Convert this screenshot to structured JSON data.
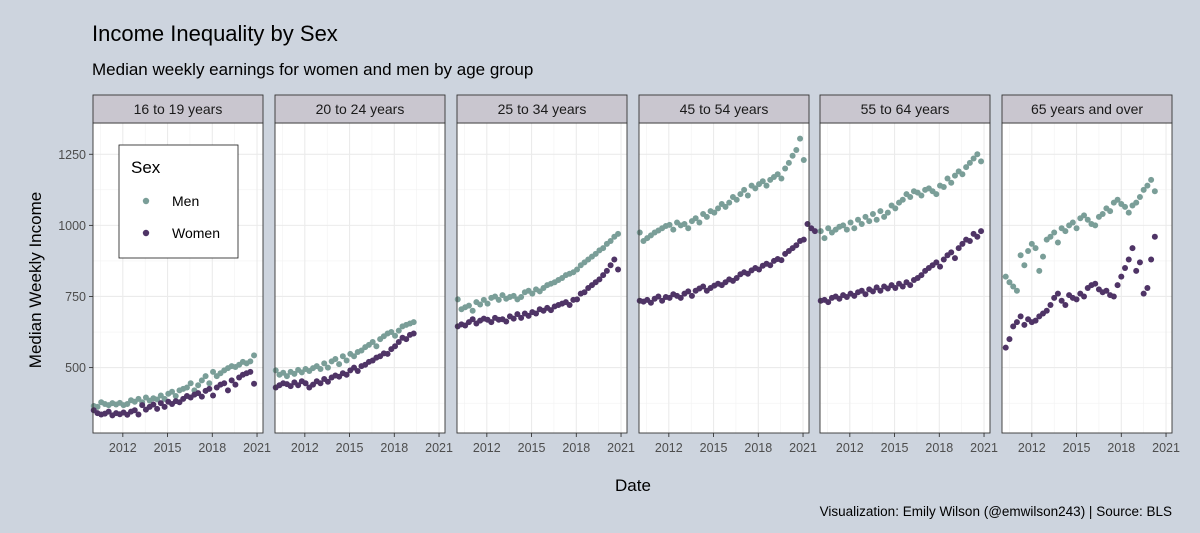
{
  "chart_data": {
    "type": "scatter",
    "title": "Income Inequality by Sex",
    "subtitle": "Median weekly earnings for women and men by age group",
    "xlabel": "Date",
    "ylabel": "Median Weekly Income",
    "caption": "Visualization: Emily Wilson (@emwilson243) | Source: BLS",
    "legend": {
      "title": "Sex",
      "position": "top-left, inside first panel",
      "items": [
        {
          "name": "Men",
          "color": "#7a9e98"
        },
        {
          "name": "Women",
          "color": "#4f3466"
        }
      ]
    },
    "xlim": [
      2010.0,
      2021.4
    ],
    "ylim": [
      270,
      1360
    ],
    "x_ticks": [
      2012,
      2015,
      2018,
      2021
    ],
    "y_ticks": [
      500,
      750,
      1000,
      1250
    ],
    "grid": true,
    "point_spacing_years": 0.25,
    "panels": [
      {
        "label": "16 to 19 years",
        "x_start": 2010.0,
        "men": [
          365,
          362,
          378,
          372,
          368,
          375,
          370,
          376,
          368,
          372,
          385,
          380,
          390,
          378,
          395,
          384,
          392,
          388,
          402,
          390,
          408,
          415,
          400,
          420,
          425,
          430,
          445,
          420,
          438,
          455,
          470,
          445,
          485,
          470,
          480,
          490,
          498,
          505,
          502,
          510,
          520,
          515,
          522,
          543
        ],
        "women": [
          350,
          340,
          335,
          338,
          345,
          332,
          340,
          336,
          342,
          334,
          345,
          350,
          335,
          368,
          352,
          362,
          370,
          355,
          375,
          362,
          380,
          372,
          382,
          378,
          390,
          400,
          395,
          405,
          410,
          398,
          418,
          425,
          402,
          430,
          440,
          445,
          420,
          455,
          440,
          465,
          475,
          480,
          485,
          443
        ]
      },
      {
        "label": "20 to 24 years",
        "x_start": 2010.0,
        "men": [
          490,
          475,
          482,
          470,
          485,
          478,
          492,
          483,
          495,
          488,
          498,
          505,
          495,
          515,
          500,
          522,
          530,
          512,
          540,
          525,
          548,
          540,
          555,
          560,
          572,
          580,
          590,
          575,
          600,
          610,
          620,
          625,
          612,
          630,
          645,
          650,
          655,
          660
        ],
        "women": [
          430,
          438,
          445,
          442,
          435,
          448,
          438,
          452,
          445,
          430,
          440,
          452,
          445,
          460,
          450,
          465,
          472,
          468,
          480,
          475,
          490,
          500,
          488,
          505,
          510,
          520,
          525,
          535,
          540,
          550,
          548,
          565,
          575,
          590,
          605,
          600,
          615,
          620
        ]
      },
      {
        "label": "25 to 34 years",
        "x_start": 2010.0,
        "men": [
          740,
          705,
          712,
          718,
          700,
          730,
          722,
          738,
          725,
          745,
          750,
          738,
          755,
          742,
          748,
          752,
          740,
          748,
          765,
          770,
          760,
          775,
          768,
          780,
          790,
          795,
          800,
          808,
          815,
          825,
          830,
          835,
          845,
          860,
          870,
          880,
          890,
          900,
          912,
          920,
          935,
          945,
          960,
          970
        ],
        "women": [
          645,
          652,
          648,
          660,
          670,
          655,
          665,
          672,
          668,
          660,
          675,
          668,
          670,
          662,
          680,
          672,
          688,
          675,
          690,
          682,
          695,
          690,
          705,
          700,
          710,
          702,
          715,
          720,
          725,
          730,
          720,
          738,
          740,
          760,
          765,
          780,
          790,
          800,
          810,
          825,
          840,
          860,
          880,
          845
        ]
      },
      {
        "label": "45 to 54 years",
        "x_start": 2010.0,
        "men": [
          975,
          945,
          955,
          965,
          975,
          982,
          990,
          998,
          1002,
          985,
          1010,
          1000,
          1005,
          990,
          1015,
          1025,
          1010,
          1040,
          1030,
          1050,
          1045,
          1060,
          1075,
          1065,
          1080,
          1100,
          1090,
          1110,
          1125,
          1105,
          1140,
          1130,
          1145,
          1155,
          1140,
          1160,
          1170,
          1180,
          1165,
          1200,
          1220,
          1245,
          1265,
          1305,
          1230
        ],
        "women": [
          735,
          732,
          738,
          728,
          742,
          750,
          735,
          748,
          745,
          758,
          752,
          745,
          760,
          768,
          752,
          770,
          778,
          785,
          770,
          780,
          788,
          795,
          790,
          800,
          810,
          805,
          815,
          828,
          835,
          830,
          842,
          850,
          845,
          858,
          865,
          860,
          875,
          882,
          878,
          900,
          910,
          920,
          930,
          945,
          950,
          1005,
          990,
          980
        ]
      },
      {
        "label": "55 to 64 years",
        "x_start": 2010.0,
        "men": [
          980,
          955,
          990,
          975,
          985,
          995,
          1000,
          985,
          1010,
          990,
          1020,
          1005,
          1030,
          1015,
          1040,
          1020,
          1050,
          1030,
          1045,
          1070,
          1060,
          1080,
          1090,
          1110,
          1100,
          1120,
          1115,
          1105,
          1125,
          1130,
          1120,
          1110,
          1140,
          1135,
          1165,
          1150,
          1175,
          1190,
          1180,
          1205,
          1220,
          1235,
          1250,
          1225
        ],
        "women": [
          735,
          738,
          730,
          745,
          750,
          742,
          755,
          748,
          760,
          752,
          765,
          770,
          758,
          775,
          768,
          782,
          770,
          785,
          778,
          790,
          780,
          795,
          785,
          800,
          790,
          808,
          815,
          825,
          840,
          850,
          860,
          870,
          855,
          880,
          895,
          905,
          885,
          920,
          935,
          950,
          945,
          970,
          960,
          980
        ]
      },
      {
        "label": "65 years and over",
        "x_start": 2010.2,
        "men": [
          820,
          800,
          785,
          770,
          895,
          860,
          910,
          935,
          920,
          840,
          890,
          950,
          960,
          975,
          940,
          990,
          980,
          1000,
          1010,
          990,
          1025,
          1035,
          1020,
          1005,
          1000,
          1030,
          1040,
          1060,
          1050,
          1080,
          1090,
          1075,
          1065,
          1045,
          1070,
          1080,
          1100,
          1125,
          1140,
          1160,
          1120
        ],
        "women": [
          570,
          600,
          645,
          660,
          680,
          650,
          670,
          660,
          665,
          680,
          690,
          700,
          720,
          745,
          760,
          735,
          720,
          755,
          745,
          740,
          760,
          750,
          780,
          790,
          795,
          775,
          765,
          770,
          755,
          750,
          790,
          820,
          850,
          880,
          920,
          840,
          870,
          760,
          780,
          880,
          960
        ]
      }
    ]
  }
}
